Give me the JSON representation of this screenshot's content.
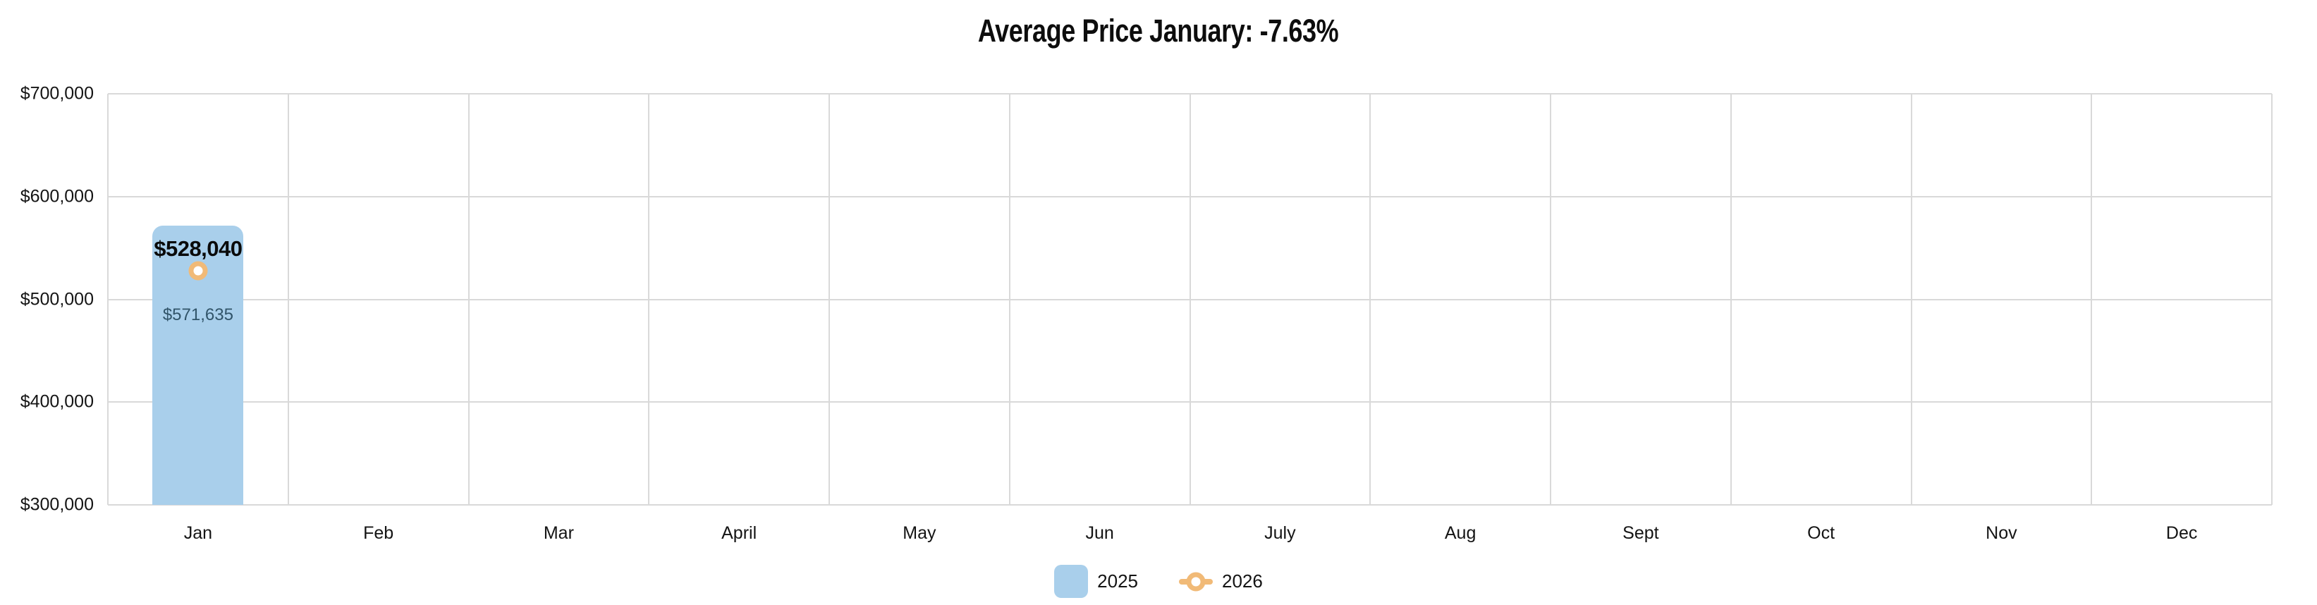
{
  "chart_data": {
    "type": "bar",
    "title": "Average Price January: -7.63%",
    "categories": [
      "Jan",
      "Feb",
      "Mar",
      "April",
      "May",
      "Jun",
      "July",
      "Aug",
      "Sept",
      "Oct",
      "Nov",
      "Dec"
    ],
    "series": [
      {
        "name": "2025",
        "type": "bar",
        "color": "#a9cfeb",
        "values": [
          571635,
          null,
          null,
          null,
          null,
          null,
          null,
          null,
          null,
          null,
          null,
          null
        ],
        "data_label": "$571,635",
        "data_label_color": "#315469"
      },
      {
        "name": "2026",
        "type": "line",
        "color": "#f1ba77",
        "marker": "circle-ring",
        "values": [
          528040,
          null,
          null,
          null,
          null,
          null,
          null,
          null,
          null,
          null,
          null,
          null
        ],
        "data_label": "$528,040",
        "data_label_color": "#0a0a0a"
      }
    ],
    "y_axis": {
      "min": 300000,
      "max": 700000,
      "tick_step": 100000,
      "tick_labels_top_to_bottom": [
        "$700,000",
        "$600,000",
        "$500,000",
        "$400,000",
        "$300,000"
      ]
    },
    "grid": true,
    "grid_color": "#d9d9d9",
    "legend_position": "bottom"
  }
}
